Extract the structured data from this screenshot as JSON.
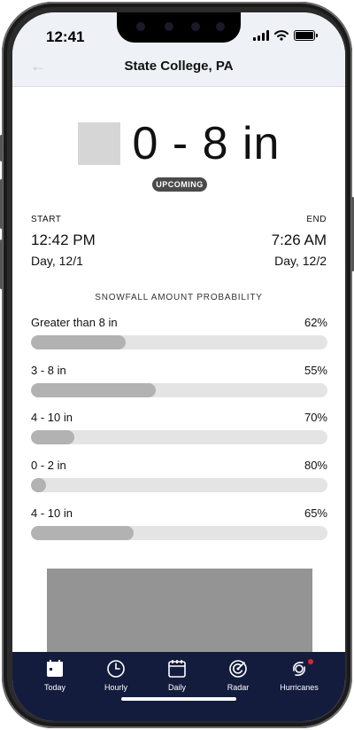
{
  "status_bar": {
    "time": "12:41"
  },
  "header": {
    "title": "State College, PA"
  },
  "forecast": {
    "amount": "0 - 8 in",
    "badge": "UPCOMING",
    "start": {
      "label": "START",
      "time": "12:42 PM",
      "day": "Day, 12/1"
    },
    "end": {
      "label": "END",
      "time": "7:26 AM",
      "day": "Day, 12/2"
    }
  },
  "probability": {
    "title": "SNOWFALL AMOUNT PROBABILITY",
    "items": [
      {
        "label": "Greater than 8 in",
        "percent_text": "62%",
        "bar_level": 0.32
      },
      {
        "label": "3 - 8 in",
        "percent_text": "55%",
        "bar_level": 0.42
      },
      {
        "label": "4 - 10 in",
        "percent_text": "70%",
        "bar_level": 0.145
      },
      {
        "label": "0 - 2 in",
        "percent_text": "80%",
        "bar_level": 0.05
      },
      {
        "label": "4 - 10 in",
        "percent_text": "65%",
        "bar_level": 0.345
      }
    ]
  },
  "bottom_nav": {
    "items": [
      {
        "label": "Today",
        "icon": "calendar-today-icon"
      },
      {
        "label": "Hourly",
        "icon": "clock-icon"
      },
      {
        "label": "Daily",
        "icon": "calendar-icon"
      },
      {
        "label": "Radar",
        "icon": "radar-icon"
      },
      {
        "label": "Hurricanes",
        "icon": "hurricane-icon"
      }
    ]
  },
  "colors": {
    "header_bg": "#eef1f5",
    "nav_bg": "#141c3e",
    "badge_bg": "#4a4a4a",
    "bar_track": "#e4e4e4",
    "bar_fill": "#b2b2b2",
    "alert": "#e0242c"
  }
}
